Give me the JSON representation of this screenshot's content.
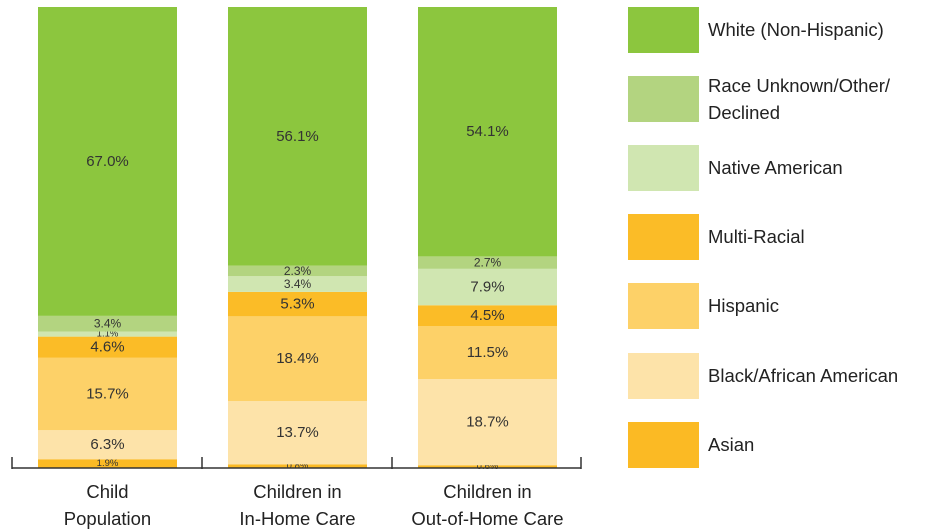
{
  "chart_data": {
    "type": "bar",
    "stacked": true,
    "categories": [
      [
        "Child",
        "Population"
      ],
      [
        "Children in",
        "In-Home Care"
      ],
      [
        "Children in",
        "Out-of-Home Care"
      ]
    ],
    "series": [
      {
        "name": "Asian",
        "color": "#fbba24",
        "values": [
          1.9,
          0.8,
          0.6
        ],
        "labels": [
          "1.9%",
          "0.8%",
          "0.6%"
        ]
      },
      {
        "name": "Black/African American",
        "color": "#fde3a9",
        "values": [
          6.3,
          13.7,
          18.7
        ],
        "labels": [
          "6.3%",
          "13.7%",
          "18.7%"
        ]
      },
      {
        "name": "Hispanic",
        "color": "#fdd168",
        "values": [
          15.7,
          18.4,
          11.5
        ],
        "labels": [
          "15.7%",
          "18.4%",
          "11.5%"
        ]
      },
      {
        "name": "Multi-Racial",
        "color": "#fbbc27",
        "values": [
          4.6,
          5.3,
          4.5
        ],
        "labels": [
          "4.6%",
          "5.3%",
          "4.5%"
        ]
      },
      {
        "name": "Native American",
        "color": "#d0e6b1",
        "values": [
          1.1,
          3.4,
          7.9
        ],
        "labels": [
          "1.1%",
          "3.4%",
          "7.9%"
        ]
      },
      {
        "name": "Race Unknown/Other/\n   Declined",
        "color": "#b3d480",
        "values": [
          3.4,
          2.3,
          2.7
        ],
        "labels": [
          "3.4%",
          "2.3%",
          "2.7%"
        ]
      },
      {
        "name": "White (Non-Hispanic)",
        "color": "#8cc63e",
        "values": [
          67.0,
          56.1,
          54.1
        ],
        "labels": [
          "67.0%",
          "56.1%",
          "54.1%"
        ]
      }
    ],
    "legend_order": [
      "White (Non-Hispanic)",
      "Race Unknown/Other/\n   Declined",
      "Native American",
      "Multi-Racial",
      "Hispanic",
      "Black/African American",
      "Asian"
    ],
    "legend_position": "right",
    "ylim": [
      0,
      100
    ],
    "grid": false
  }
}
